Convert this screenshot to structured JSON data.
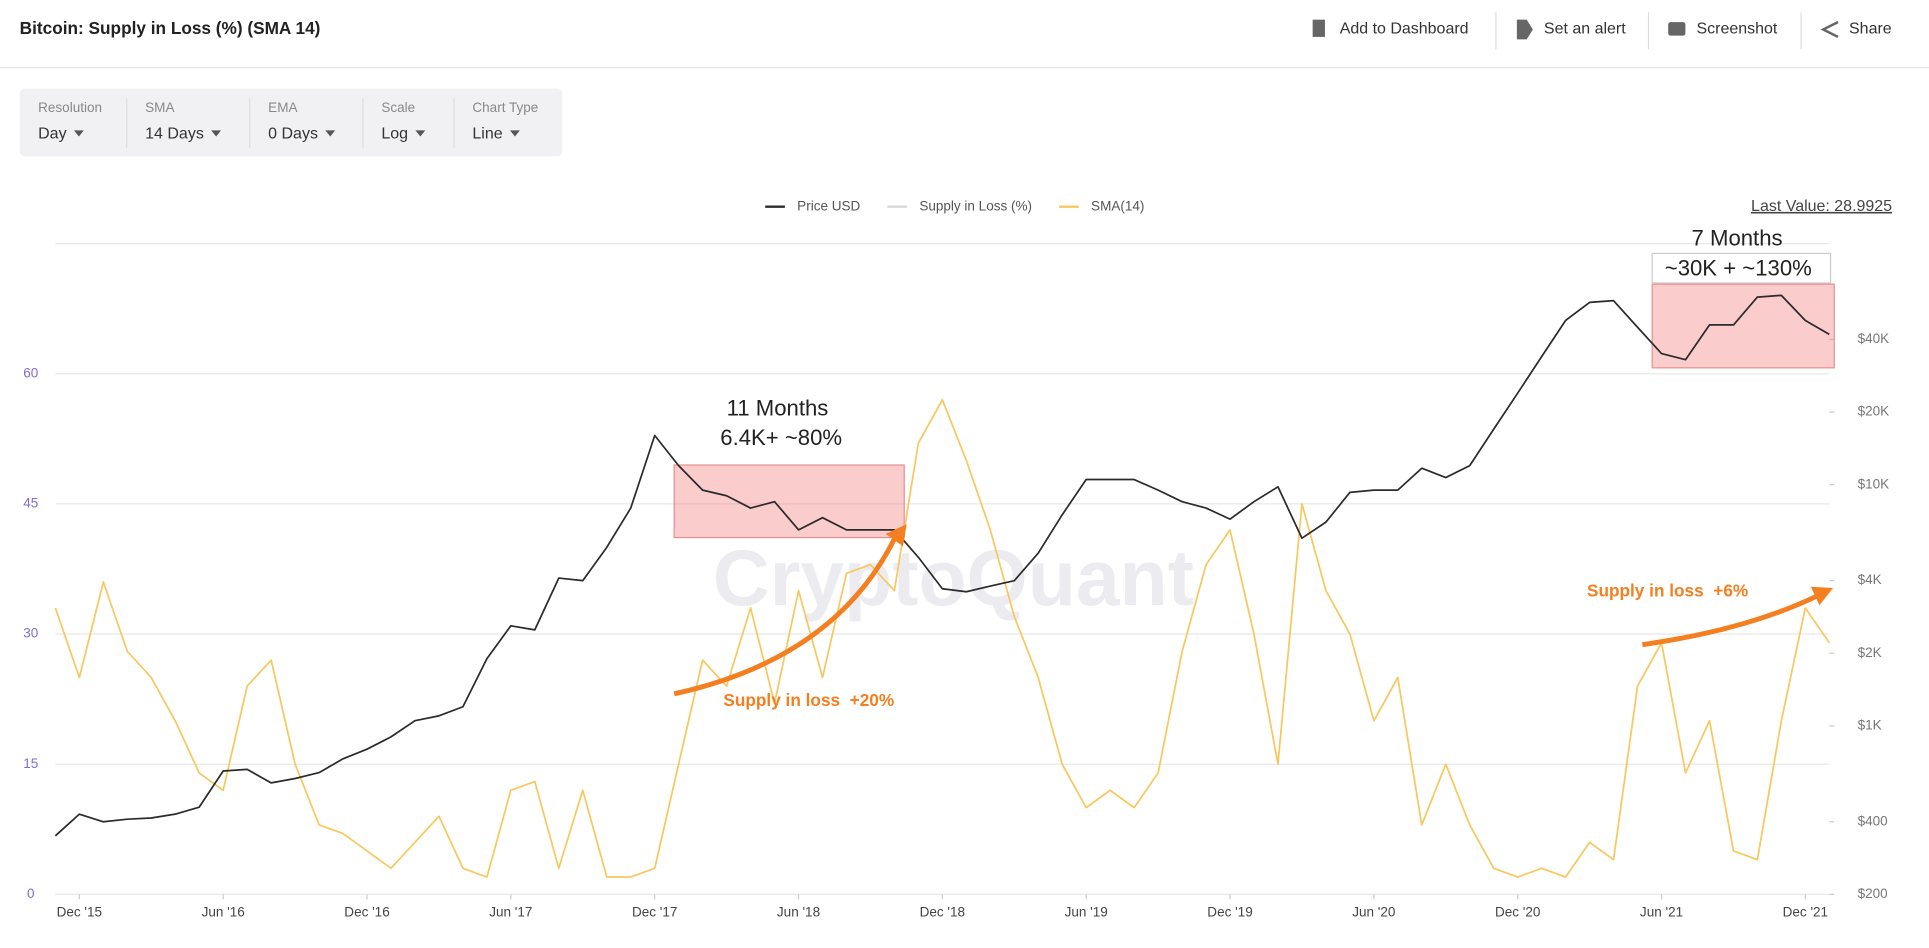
{
  "header": {
    "title": "Bitcoin: Supply in Loss (%) (SMA 14)",
    "actions": [
      "Add to Dashboard",
      "Set an alert",
      "Screenshot",
      "Share"
    ]
  },
  "controls": [
    {
      "label": "Resolution",
      "value": "Day"
    },
    {
      "label": "SMA",
      "value": "14 Days"
    },
    {
      "label": "EMA",
      "value": "0 Days"
    },
    {
      "label": "Scale",
      "value": "Log"
    },
    {
      "label": "Chart Type",
      "value": "Line"
    }
  ],
  "chart_data": {
    "type": "line",
    "last_value": "Last Value: 28.9925",
    "watermark": "CryptoQuant",
    "legend_only": [
      {
        "name": "Supply in Loss (%)",
        "color": "#d8d8d8"
      }
    ],
    "annotations": [
      "11 Months",
      "6.4K+ ~80%",
      "7 Months",
      "~30K + ~130%",
      "Supply in loss  +20%",
      "Supply in loss  +6%"
    ],
    "x": [
      "2015-11",
      "2015-12",
      "2016-01",
      "2016-02",
      "2016-03",
      "2016-04",
      "2016-05",
      "2016-06",
      "2016-07",
      "2016-08",
      "2016-09",
      "2016-10",
      "2016-11",
      "2016-12",
      "2017-01",
      "2017-02",
      "2017-03",
      "2017-04",
      "2017-05",
      "2017-06",
      "2017-07",
      "2017-08",
      "2017-09",
      "2017-10",
      "2017-11",
      "2017-12",
      "2018-01",
      "2018-02",
      "2018-03",
      "2018-04",
      "2018-05",
      "2018-06",
      "2018-07",
      "2018-08",
      "2018-09",
      "2018-10",
      "2018-11",
      "2018-12",
      "2019-01",
      "2019-02",
      "2019-03",
      "2019-04",
      "2019-05",
      "2019-06",
      "2019-07",
      "2019-08",
      "2019-09",
      "2019-10",
      "2019-11",
      "2019-12",
      "2020-01",
      "2020-02",
      "2020-03",
      "2020-04",
      "2020-05",
      "2020-06",
      "2020-07",
      "2020-08",
      "2020-09",
      "2020-10",
      "2020-11",
      "2020-12",
      "2021-01",
      "2021-02",
      "2021-03",
      "2021-04",
      "2021-05",
      "2021-06",
      "2021-07",
      "2021-08",
      "2021-09",
      "2021-10",
      "2021-11",
      "2021-12",
      "2022-01"
    ],
    "series": [
      {
        "name": "Price USD",
        "color": "#2b2b2b",
        "axis": "y2",
        "values": [
          350,
          430,
          400,
          410,
          415,
          430,
          460,
          650,
          660,
          580,
          605,
          640,
          730,
          800,
          900,
          1050,
          1100,
          1200,
          1900,
          2600,
          2500,
          4100,
          4000,
          5500,
          8000,
          16000,
          12000,
          9500,
          9000,
          8000,
          8500,
          6500,
          7300,
          6500,
          6500,
          6500,
          5000,
          3700,
          3600,
          3800,
          4000,
          5200,
          7500,
          10500,
          10500,
          10500,
          9500,
          8500,
          8000,
          7200,
          8500,
          9800,
          6000,
          7000,
          9300,
          9500,
          9500,
          11700,
          10700,
          12000,
          17000,
          24000,
          34000,
          48000,
          57000,
          58000,
          45000,
          35000,
          33000,
          46000,
          46000,
          60000,
          61000,
          48000,
          42000
        ]
      },
      {
        "name": "SMA(14)",
        "color": "#f6c85f",
        "values": [
          33,
          25,
          36,
          28,
          25,
          20,
          14,
          12,
          24,
          27,
          15,
          8,
          7,
          5,
          3,
          6,
          9,
          3,
          2,
          12,
          13,
          3,
          12,
          2,
          2,
          3,
          15,
          27,
          24,
          33,
          22,
          35,
          25,
          37,
          38,
          35,
          52,
          57,
          50,
          42,
          32,
          25,
          15,
          10,
          12,
          10,
          14,
          28,
          38,
          42,
          30,
          15,
          45,
          35,
          30,
          20,
          25,
          8,
          15,
          8,
          3,
          2,
          3,
          2,
          6,
          4,
          24,
          29,
          14,
          20,
          5,
          4,
          20,
          33,
          29
        ]
      }
    ],
    "xlim": [
      "2015-11",
      "2022-01"
    ],
    "xticks": [
      {
        "value": "2015-12",
        "label": "Dec '15"
      },
      {
        "value": "2016-06",
        "label": "Jun '16"
      },
      {
        "value": "2016-12",
        "label": "Dec '16"
      },
      {
        "value": "2017-06",
        "label": "Jun '17"
      },
      {
        "value": "2017-12",
        "label": "Dec '17"
      },
      {
        "value": "2018-06",
        "label": "Jun '18"
      },
      {
        "value": "2018-12",
        "label": "Dec '18"
      },
      {
        "value": "2019-06",
        "label": "Jun '19"
      },
      {
        "value": "2019-12",
        "label": "Dec '19"
      },
      {
        "value": "2020-06",
        "label": "Jun '20"
      },
      {
        "value": "2020-12",
        "label": "Dec '20"
      },
      {
        "value": "2021-06",
        "label": "Jun '21"
      },
      {
        "value": "2021-12",
        "label": "Dec '21"
      }
    ],
    "ylim": [
      0,
      75
    ],
    "yticks": [
      0,
      15,
      30,
      45,
      60
    ],
    "y2lim": [
      200,
      100000
    ],
    "y2scale": "log",
    "y2ticks": [
      {
        "value": 200,
        "label": "$200"
      },
      {
        "value": 400,
        "label": "$400"
      },
      {
        "value": 1000,
        "label": "$1K"
      },
      {
        "value": 2000,
        "label": "$2K"
      },
      {
        "value": 4000,
        "label": "$4K"
      },
      {
        "value": 10000,
        "label": "$10K"
      },
      {
        "value": 20000,
        "label": "$20K"
      },
      {
        "value": 40000,
        "label": "$40K"
      }
    ],
    "grid": true
  }
}
